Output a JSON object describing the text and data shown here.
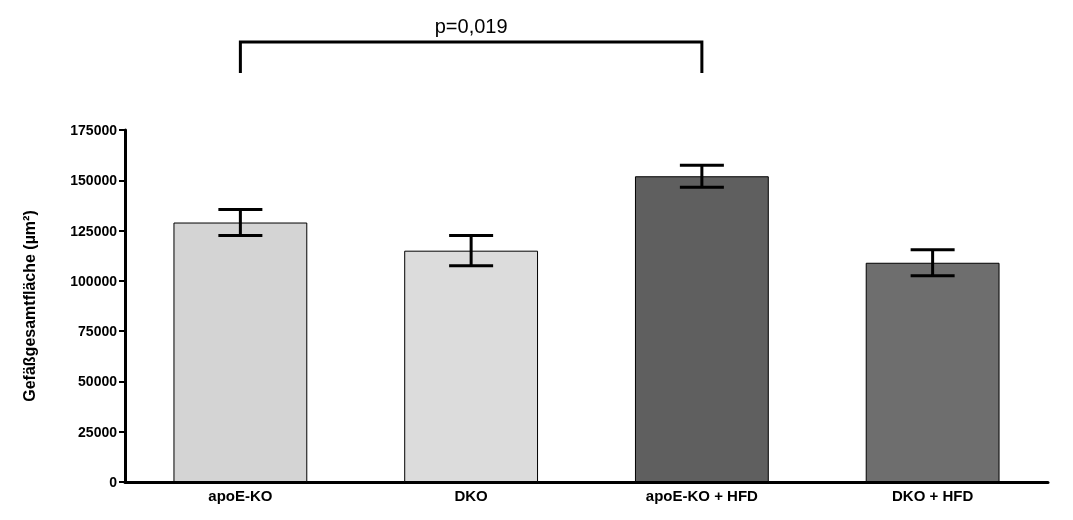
{
  "chart_data": {
    "type": "bar",
    "ylabel": "Gefäßgesamtfläche (µm²)",
    "categories": [
      "apoE-KO",
      "DKO",
      "apoE-KO + HFD",
      "DKO + HFD"
    ],
    "values": [
      129000,
      115000,
      152000,
      109000
    ],
    "colors": [
      "#d4d4d4",
      "#dcdcdc",
      "#5f5f5f",
      "#6e6e6e"
    ],
    "errors": [
      6500,
      7500,
      5500,
      6500
    ],
    "ylim": [
      0,
      175000
    ],
    "yticks": [
      0,
      25000,
      50000,
      75000,
      100000,
      125000,
      150000,
      175000
    ],
    "grid": false,
    "annotations": [
      "p=0,019"
    ]
  }
}
